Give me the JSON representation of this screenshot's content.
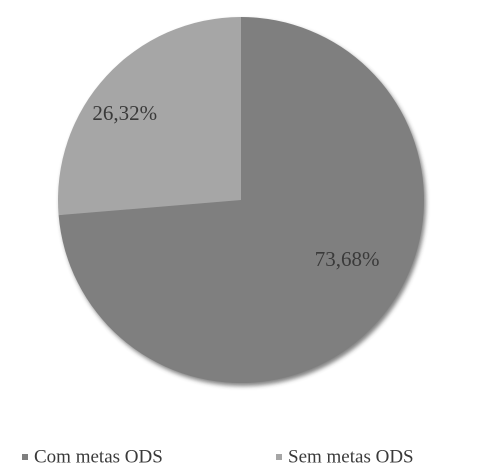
{
  "chart_data": {
    "type": "pie",
    "categories": [
      "Com metas ODS",
      "Sem metas ODS"
    ],
    "values": [
      73.68,
      26.32
    ],
    "value_labels": [
      "73,68%",
      "26,32%"
    ],
    "colors": [
      "#7f7f7f",
      "#a6a6a6"
    ],
    "legend": "bottom"
  }
}
